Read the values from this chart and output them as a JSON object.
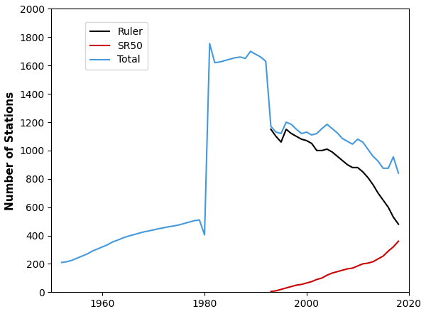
{
  "title": "",
  "ylabel": "Number of Stations",
  "xlabel": "",
  "xlim": [
    1950,
    2020
  ],
  "ylim": [
    0,
    2000
  ],
  "yticks": [
    0,
    200,
    400,
    600,
    800,
    1000,
    1200,
    1400,
    1600,
    1800,
    2000
  ],
  "xticks": [
    1960,
    1980,
    2000,
    2020
  ],
  "legend_labels": [
    "Ruler",
    "SR50",
    "Total"
  ],
  "legend_colors": [
    "#000000",
    "#cc0000",
    "#4499dd"
  ],
  "ruler": {
    "years": [
      1993,
      1994,
      1995,
      1996,
      1997,
      1998,
      1999,
      2000,
      2001,
      2002,
      2003,
      2004,
      2005,
      2006,
      2007,
      2008,
      2009,
      2010,
      2011,
      2012,
      2013,
      2014,
      2015,
      2016,
      2017,
      2018
    ],
    "values": [
      1150,
      1100,
      1060,
      1150,
      1120,
      1100,
      1080,
      1070,
      1050,
      1000,
      1000,
      1010,
      990,
      960,
      930,
      900,
      880,
      880,
      850,
      810,
      760,
      700,
      650,
      600,
      530,
      480
    ]
  },
  "total": {
    "years": [
      1952,
      1953,
      1954,
      1955,
      1956,
      1957,
      1958,
      1959,
      1960,
      1961,
      1962,
      1963,
      1964,
      1965,
      1966,
      1967,
      1968,
      1969,
      1970,
      1971,
      1972,
      1973,
      1974,
      1975,
      1976,
      1977,
      1978,
      1979,
      1980,
      1981,
      1982,
      1983,
      1984,
      1985,
      1986,
      1987,
      1988,
      1989,
      1990,
      1991,
      1992,
      1993,
      1994,
      1995,
      1996,
      1997,
      1998,
      1999,
      2000,
      2001,
      2002,
      2003,
      2004,
      2005,
      2006,
      2007,
      2008,
      2009,
      2010,
      2011,
      2012,
      2013,
      2014,
      2015,
      2016,
      2017,
      2018
    ],
    "values": [
      210,
      215,
      225,
      240,
      255,
      270,
      290,
      305,
      320,
      335,
      355,
      368,
      383,
      395,
      405,
      415,
      425,
      432,
      440,
      448,
      455,
      462,
      468,
      475,
      485,
      495,
      505,
      510,
      405,
      1755,
      1620,
      1625,
      1635,
      1645,
      1655,
      1660,
      1650,
      1700,
      1680,
      1660,
      1630,
      1170,
      1130,
      1120,
      1200,
      1185,
      1150,
      1120,
      1130,
      1110,
      1120,
      1155,
      1185,
      1155,
      1125,
      1085,
      1065,
      1045,
      1080,
      1060,
      1010,
      960,
      925,
      875,
      875,
      955,
      840
    ]
  },
  "sr50": {
    "years": [
      1993,
      1994,
      1995,
      1996,
      1997,
      1998,
      1999,
      2000,
      2001,
      2002,
      2003,
      2004,
      2005,
      2006,
      2007,
      2008,
      2009,
      2010,
      2011,
      2012,
      2013,
      2014,
      2015,
      2016,
      2017,
      2018
    ],
    "values": [
      5,
      10,
      20,
      30,
      40,
      50,
      55,
      65,
      75,
      90,
      100,
      120,
      135,
      145,
      155,
      165,
      170,
      185,
      200,
      205,
      215,
      235,
      255,
      290,
      320,
      360
    ]
  }
}
